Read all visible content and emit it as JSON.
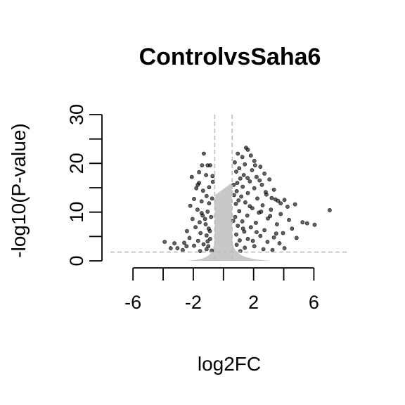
{
  "chart_data": {
    "type": "scatter",
    "title": "ControlvsSaha6",
    "xlabel": "log2FC",
    "ylabel": "-log10(P-value)",
    "xlim": [
      -7.5,
      7.8
    ],
    "ylim": [
      0,
      30
    ],
    "x_ticks": [
      -6,
      -4,
      -2,
      0,
      2,
      4,
      6
    ],
    "x_tick_labels": [
      "-6",
      "",
      "-2",
      "",
      "2",
      "",
      "6"
    ],
    "y_ticks": [
      0,
      5,
      10,
      15,
      20,
      25,
      30
    ],
    "y_tick_labels": [
      "0",
      "",
      "10",
      "",
      "20",
      "",
      "30"
    ],
    "thresholds": {
      "log2fc": [
        -0.58,
        0.58
      ],
      "p_value_line": 1.8
    },
    "grid": false,
    "legend": "none",
    "colors": {
      "significant": "#000000",
      "nonsignificant": "#c8c8c8",
      "threshold_line": "#bdbdbd",
      "axis": "#000000"
    },
    "series": [
      {
        "significant": true,
        "points": [
          [
            -1.3,
            22.0
          ],
          [
            -1.05,
            19.6
          ],
          [
            -0.88,
            19.6
          ],
          [
            -1.62,
            18.2
          ],
          [
            -1.15,
            17.6
          ],
          [
            -0.72,
            17.4
          ],
          [
            -1.8,
            14.9
          ],
          [
            -1.12,
            13.3
          ],
          [
            -1.95,
            12.7
          ],
          [
            -1.45,
            12.2
          ],
          [
            -0.95,
            11.8
          ],
          [
            -2.2,
            11.3
          ],
          [
            -1.72,
            10.5
          ],
          [
            -1.05,
            10.1
          ],
          [
            -1.38,
            9.3
          ],
          [
            -0.82,
            9.0
          ],
          [
            -2.05,
            8.6
          ],
          [
            -1.58,
            7.9
          ],
          [
            -1.18,
            7.5
          ],
          [
            -1.85,
            6.9
          ],
          [
            -0.98,
            6.6
          ],
          [
            -2.42,
            6.1
          ],
          [
            -1.52,
            5.7
          ],
          [
            -1.12,
            5.2
          ],
          [
            -2.25,
            4.7
          ],
          [
            -0.88,
            4.5
          ],
          [
            -1.68,
            4.1
          ],
          [
            -2.6,
            3.7
          ],
          [
            -3.25,
            3.6
          ],
          [
            -1.32,
            3.4
          ],
          [
            -1.95,
            3.1
          ],
          [
            -3.5,
            2.6
          ],
          [
            -3.05,
            2.6
          ],
          [
            -1.12,
            2.4
          ],
          [
            -2.7,
            2.2
          ],
          [
            -0.78,
            2.1
          ],
          [
            -1.55,
            2.0
          ],
          [
            -3.9,
            3.9
          ],
          [
            -1.35,
            14.4
          ],
          [
            -0.95,
            15.1
          ],
          [
            -1.62,
            16.0
          ],
          [
            -1.42,
            19.6
          ],
          [
            -2.1,
            17.2
          ],
          [
            -1.22,
            8.6
          ],
          [
            -0.75,
            12.8
          ],
          [
            -1.0,
            3.0
          ],
          [
            -1.45,
            9.8
          ],
          [
            -0.9,
            6.1
          ],
          [
            -1.7,
            15.6
          ],
          [
            -0.7,
            16.2
          ],
          [
            -1.05,
            4.0
          ],
          [
            -2.45,
            3.0
          ],
          [
            1.5,
            23.2
          ],
          [
            1.62,
            22.8
          ],
          [
            0.95,
            22.0
          ],
          [
            1.82,
            21.6
          ],
          [
            1.25,
            21.3
          ],
          [
            2.05,
            20.5
          ],
          [
            0.75,
            20.2
          ],
          [
            1.42,
            19.8
          ],
          [
            2.45,
            19.3
          ],
          [
            1.05,
            19.0
          ],
          [
            1.9,
            18.6
          ],
          [
            0.85,
            18.3
          ],
          [
            2.72,
            17.9
          ],
          [
            1.35,
            17.6
          ],
          [
            2.2,
            17.2
          ],
          [
            1.12,
            16.9
          ],
          [
            3.05,
            16.7
          ],
          [
            1.75,
            16.3
          ],
          [
            0.92,
            16.0
          ],
          [
            2.55,
            15.6
          ],
          [
            1.28,
            15.2
          ],
          [
            2.05,
            14.9
          ],
          [
            3.35,
            14.6
          ],
          [
            0.88,
            14.3
          ],
          [
            1.62,
            13.9
          ],
          [
            2.85,
            13.6
          ],
          [
            1.18,
            13.2
          ],
          [
            2.25,
            12.8
          ],
          [
            3.45,
            12.6
          ],
          [
            3.62,
            12.3
          ],
          [
            4.05,
            12.5
          ],
          [
            1.45,
            12.0
          ],
          [
            0.82,
            11.7
          ],
          [
            2.6,
            11.4
          ],
          [
            4.25,
            11.1
          ],
          [
            1.92,
            10.8
          ],
          [
            3.15,
            10.5
          ],
          [
            4.75,
            11.6
          ],
          [
            1.05,
            10.2
          ],
          [
            2.35,
            9.9
          ],
          [
            3.8,
            9.6
          ],
          [
            1.58,
            9.3
          ],
          [
            0.78,
            9.0
          ],
          [
            2.95,
            8.7
          ],
          [
            4.35,
            8.4
          ],
          [
            1.25,
            8.1
          ],
          [
            2.15,
            7.8
          ],
          [
            5.55,
            7.7
          ],
          [
            3.55,
            7.5
          ],
          [
            5.25,
            7.9
          ],
          [
            6.05,
            7.4
          ],
          [
            0.95,
            7.2
          ],
          [
            1.82,
            6.9
          ],
          [
            4.55,
            6.6
          ],
          [
            2.72,
            6.3
          ],
          [
            1.38,
            6.0
          ],
          [
            3.95,
            5.7
          ],
          [
            0.85,
            5.4
          ],
          [
            2.45,
            5.1
          ],
          [
            3.35,
            4.8
          ],
          [
            1.62,
            4.5
          ],
          [
            4.85,
            4.7
          ],
          [
            1.08,
            4.2
          ],
          [
            2.92,
            3.9
          ],
          [
            3.72,
            3.6
          ],
          [
            0.88,
            3.3
          ],
          [
            2.05,
            3.0
          ],
          [
            1.42,
            2.7
          ],
          [
            2.65,
            2.4
          ],
          [
            3.25,
            2.2
          ],
          [
            1.12,
            2.0
          ],
          [
            4.05,
            2.6
          ],
          [
            7.05,
            10.4
          ],
          [
            3.2,
            12.9
          ],
          [
            3.8,
            11.8
          ],
          [
            2.4,
            16.5
          ],
          [
            1.6,
            17.0
          ],
          [
            0.7,
            13.5
          ],
          [
            1.0,
            12.4
          ],
          [
            2.1,
            19.6
          ],
          [
            2.5,
            10.1
          ],
          [
            3.1,
            9.2
          ],
          [
            1.3,
            6.6
          ],
          [
            2.2,
            5.9
          ],
          [
            0.65,
            8.2
          ],
          [
            0.68,
            15.6
          ],
          [
            1.75,
            11.2
          ],
          [
            2.8,
            14.1
          ],
          [
            1.95,
            4.1
          ],
          [
            3.5,
            5.6
          ]
        ]
      },
      {
        "significant": false,
        "points": [
          [
            -0.45,
            7.5
          ],
          [
            -0.3,
            9.8
          ],
          [
            -0.2,
            6.3
          ],
          [
            -0.12,
            4.4
          ],
          [
            0.05,
            3.9
          ],
          [
            0.18,
            5.6
          ],
          [
            0.32,
            8.3
          ],
          [
            0.42,
            10.7
          ],
          [
            0.25,
            3.3
          ],
          [
            -0.38,
            3.1
          ],
          [
            0.1,
            2.6
          ],
          [
            -0.05,
            2.9
          ],
          [
            0.4,
            12.4
          ],
          [
            0.5,
            14.2
          ],
          [
            -0.5,
            11.6
          ],
          [
            -0.55,
            9.1
          ],
          [
            0.28,
            6.9
          ],
          [
            -0.25,
            5.1
          ],
          [
            0.12,
            7.8
          ],
          [
            -0.15,
            8.4
          ],
          [
            0.46,
            4.7
          ],
          [
            -0.42,
            4.2
          ],
          [
            0.35,
            1.7
          ],
          [
            -0.3,
            1.9
          ]
        ]
      }
    ]
  }
}
